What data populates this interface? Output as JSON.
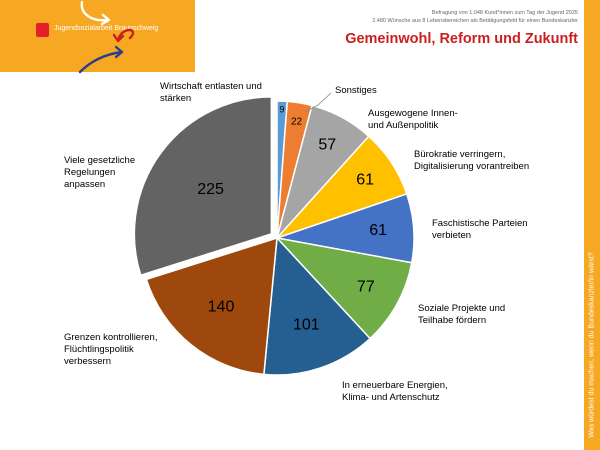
{
  "header": {
    "org_name": "Jugendsozialarbeit Braunschweig",
    "subtitle_line1": "Befragung von 1.048 Kund*innen zum Tag der Jugend 2025",
    "subtitle_line2": "2.480 Wünsche aus 8 Lebensbereichen als Betätigungsfeld für einen Bundeskanzler",
    "title": "Gemeinwohl, Reform und Zukunft"
  },
  "side_text": "Was würdest du machen, wenn du Bundeskanzler/in wärst?",
  "colors": {
    "banner": "#f7a823",
    "title": "#c9201f",
    "logo": "#e3202a"
  },
  "icons": [
    "coat-of-arms-icon",
    "curved-arrow-white-icon",
    "curved-arrow-red-icon",
    "curved-arrow-blue-icon"
  ],
  "chart_data": {
    "type": "pie",
    "start_angle_deg": 0,
    "exploded_slice": "Viele gesetzliche Regelungen anpassen",
    "slices": [
      {
        "label": "Wirtschaft entlasten und stärken",
        "value": 9,
        "color": "#5b9bd5"
      },
      {
        "label": "Sonstiges",
        "value": 22,
        "color": "#ed7d31"
      },
      {
        "label": "Ausgewogene Innen- und Außenpolitik",
        "value": 57,
        "color": "#a5a5a5"
      },
      {
        "label": "Bürokratie verringern, Digitalisierung vorantreiben",
        "value": 61,
        "color": "#ffc000"
      },
      {
        "label": "Faschistische Parteien verbieten",
        "value": 61,
        "color": "#4472c4"
      },
      {
        "label": "Soziale Projekte und Teilhabe fördern",
        "value": 77,
        "color": "#70ad47"
      },
      {
        "label": "In erneuerbare Energien, Klima- und Artenschutz",
        "value": 101,
        "color": "#255e91"
      },
      {
        "label": "Grenzen kontrollieren, Flüchtlingspolitik verbessern",
        "value": 140,
        "color": "#9e480e"
      },
      {
        "label": "Viele gesetzliche Regelungen anpassen",
        "value": 225,
        "color": "#636363"
      }
    ],
    "category_label_lines": [
      [
        "Wirtschaft entlasten und",
        "stärken"
      ],
      [
        "Sonstiges"
      ],
      [
        "Ausgewogene Innen-",
        "und Außenpolitik"
      ],
      [
        "Bürokratie verringern,",
        "Digitalisierung vorantreiben"
      ],
      [
        "Faschistische Parteien",
        "verbieten"
      ],
      [
        "Soziale Projekte und",
        "Teilhabe fördern"
      ],
      [
        "In erneuerbare Energien,",
        "Klima- und Artenschutz"
      ],
      [
        "Grenzen kontrollieren,",
        "Flüchtlingspolitik",
        "verbessern"
      ],
      [
        "Viele gesetzliche",
        "Regelungen",
        "anpassen"
      ]
    ]
  }
}
